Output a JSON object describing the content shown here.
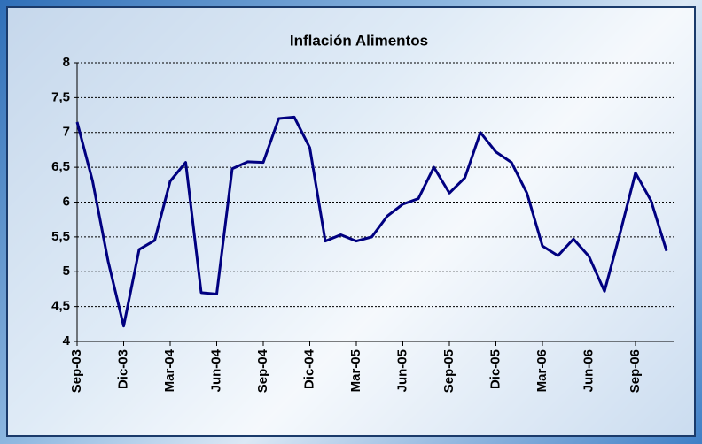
{
  "chart_data": {
    "type": "line",
    "title": "Inflación Alimentos",
    "categories": [
      "Sep-03",
      null,
      null,
      "Dic-03",
      null,
      null,
      "Mar-04",
      null,
      null,
      "Jun-04",
      null,
      null,
      "Sep-04",
      null,
      null,
      "Dic-04",
      null,
      null,
      "Mar-05",
      null,
      null,
      "Jun-05",
      null,
      null,
      "Sep-05",
      null,
      null,
      "Dic-05",
      null,
      null,
      "Mar-06",
      null,
      null,
      "Jun-06",
      null,
      null,
      "Sep-06",
      null,
      null
    ],
    "series": [
      {
        "name": "Inflación Alimentos",
        "color": "#000080",
        "values": [
          7.15,
          6.3,
          5.15,
          4.22,
          5.32,
          5.45,
          6.3,
          6.57,
          4.7,
          4.68,
          6.48,
          6.58,
          6.57,
          7.2,
          7.22,
          6.78,
          5.44,
          5.53,
          5.44,
          5.5,
          5.8,
          5.97,
          6.05,
          6.5,
          6.13,
          6.35,
          7.0,
          6.72,
          6.57,
          6.13,
          5.37,
          5.23,
          5.47,
          5.22,
          4.72,
          5.55,
          6.42,
          6.02,
          5.3
        ]
      }
    ],
    "ylim": [
      4,
      8
    ],
    "yticks": [
      4,
      {
        "value": 4.5,
        "label": "4,5"
      },
      5,
      {
        "value": 5.5,
        "label": "5,5"
      },
      6,
      {
        "value": 6.5,
        "label": "6,5"
      },
      7,
      {
        "value": 7.5,
        "label": "7,5"
      },
      8
    ],
    "grid": true
  }
}
